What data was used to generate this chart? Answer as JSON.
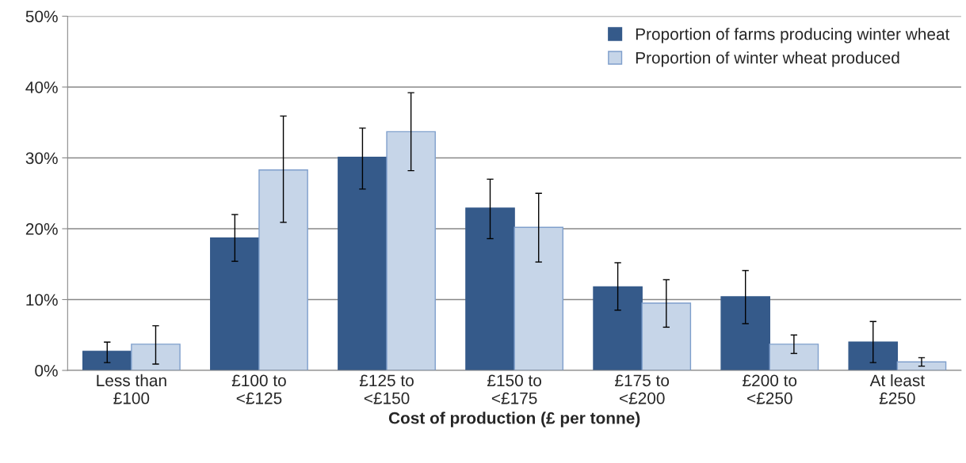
{
  "chart_data": {
    "type": "bar",
    "xlabel": "Cost of production (£ per tonne)",
    "categories": [
      "Less than\n£100",
      "£100 to\n<£125",
      "£125 to\n<£150",
      "£150 to\n<£175",
      "£175 to\n<£200",
      "£200 to\n<£250",
      "At least\n£250"
    ],
    "series": [
      {
        "name": "Proportion of farms producing winter wheat",
        "color": "#355a8a",
        "values": [
          2.7,
          18.7,
          30.1,
          22.9,
          11.8,
          10.4,
          4.0
        ],
        "errors": [
          [
            1.1,
            4.0
          ],
          [
            15.4,
            22.0
          ],
          [
            25.6,
            34.2
          ],
          [
            18.6,
            27.0
          ],
          [
            8.5,
            15.2
          ],
          [
            6.6,
            14.1
          ],
          [
            1.1,
            6.9
          ]
        ]
      },
      {
        "name": "Proportion of winter wheat produced",
        "color": "#c6d5e8",
        "values": [
          3.7,
          28.3,
          33.7,
          20.2,
          9.5,
          3.7,
          1.2
        ],
        "errors": [
          [
            0.9,
            6.3
          ],
          [
            20.9,
            35.9
          ],
          [
            28.2,
            39.2
          ],
          [
            15.3,
            25.0
          ],
          [
            6.1,
            12.8
          ],
          [
            2.4,
            5.0
          ],
          [
            0.6,
            1.8
          ]
        ]
      }
    ],
    "ylim": [
      0,
      50
    ],
    "yticks": [
      {
        "value": 0,
        "label": "0%"
      },
      {
        "value": 10,
        "label": "10%"
      },
      {
        "value": 20,
        "label": "20%"
      },
      {
        "value": 30,
        "label": "30%"
      },
      {
        "value": 40,
        "label": "40%"
      },
      {
        "value": 50,
        "label": "50%"
      }
    ],
    "grid": "y",
    "legend": "top right"
  }
}
